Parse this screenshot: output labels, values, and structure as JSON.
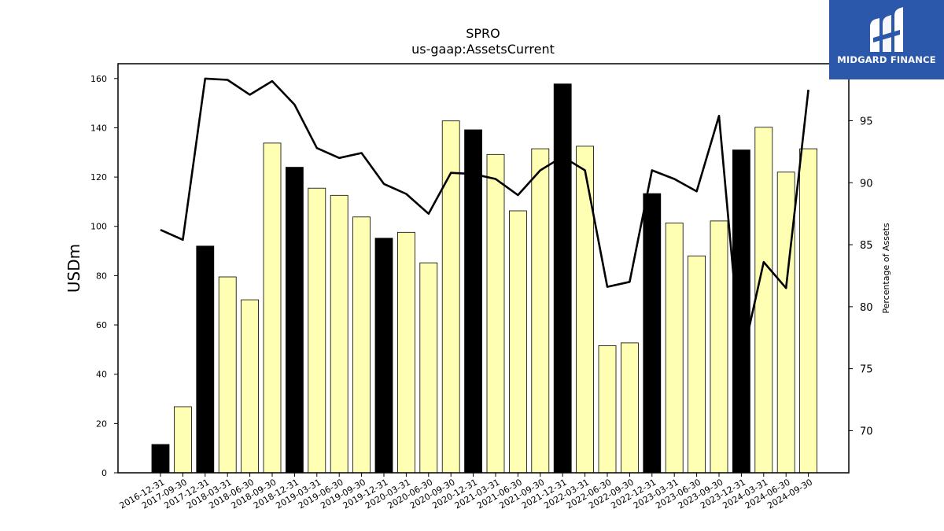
{
  "chart_data": {
    "type": "bar",
    "title": "SPRO",
    "subtitle": "us-gaap:AssetsCurrent",
    "ylabel": "USDm",
    "y2label": "Percentage of Assets",
    "ylim": [
      0,
      166
    ],
    "y2lim": [
      66.6,
      99.6
    ],
    "yticks": [
      0,
      20,
      40,
      60,
      80,
      100,
      120,
      140,
      160
    ],
    "y2ticks": [
      70,
      75,
      80,
      85,
      90,
      95
    ],
    "categories": [
      "2016-12-31",
      "2017-09-30",
      "2017-12-31",
      "2018-03-31",
      "2018-06-30",
      "2018-09-30",
      "2018-12-31",
      "2019-03-31",
      "2019-06-30",
      "2019-09-30",
      "2019-12-31",
      "2020-03-31",
      "2020-06-30",
      "2020-09-30",
      "2020-12-31",
      "2021-03-31",
      "2021-06-30",
      "2021-09-30",
      "2021-12-31",
      "2022-03-31",
      "2022-06-30",
      "2022-09-30",
      "2022-12-31",
      "2023-03-31",
      "2023-06-30",
      "2023-09-30",
      "2023-12-31",
      "2024-03-31",
      "2024-06-30",
      "2024-09-30"
    ],
    "values": [
      11.5,
      26.8,
      92.0,
      79.5,
      70.2,
      133.8,
      124.0,
      115.5,
      112.6,
      103.8,
      95.2,
      97.6,
      85.2,
      142.8,
      139.2,
      129.2,
      106.3,
      131.5,
      157.8,
      132.5,
      51.6,
      52.7,
      113.3,
      101.4,
      88.0,
      102.2,
      131.0,
      140.2,
      122.0,
      131.5
    ],
    "annual": [
      true,
      false,
      true,
      false,
      false,
      false,
      true,
      false,
      false,
      false,
      true,
      false,
      false,
      false,
      true,
      false,
      false,
      false,
      true,
      false,
      false,
      false,
      true,
      false,
      false,
      false,
      true,
      false,
      false,
      false
    ],
    "percent_series": [
      86.2,
      85.4,
      98.4,
      98.3,
      97.1,
      98.2,
      96.3,
      92.8,
      92.0,
      92.4,
      89.9,
      89.1,
      87.5,
      90.8,
      90.7,
      90.3,
      89.0,
      91.0,
      92.1,
      91.0,
      81.6,
      82.0,
      91.0,
      90.3,
      89.3,
      95.4,
      75.5,
      83.6,
      81.5,
      97.5
    ],
    "colors": {
      "annual_bar": "#000000",
      "quarter_bar": "#ffffb3",
      "bar_edge": "#000000",
      "line": "#000000"
    }
  },
  "logo": {
    "text": "MIDGARD FINANCE",
    "background": "#2b58ab"
  }
}
